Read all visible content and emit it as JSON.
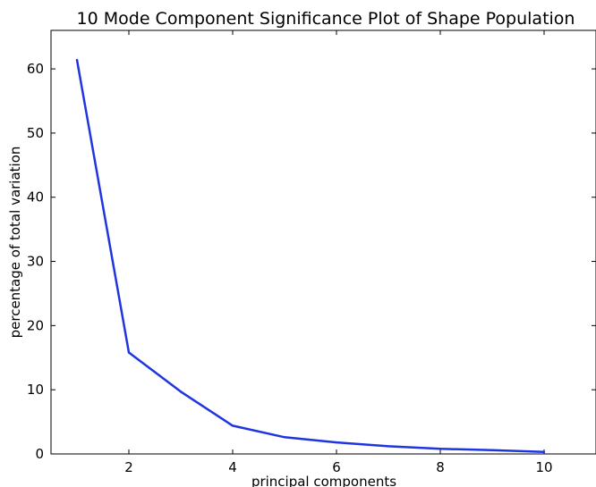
{
  "chart_data": {
    "type": "line",
    "title": "10 Mode Component Significance Plot of Shape Population",
    "xlabel": "principal components",
    "ylabel": "percentage of total variation",
    "xlim": [
      0.5,
      11
    ],
    "ylim": [
      0,
      66
    ],
    "x_ticks": [
      2,
      4,
      6,
      8,
      10
    ],
    "y_ticks": [
      0,
      10,
      20,
      30,
      40,
      50,
      60
    ],
    "grid": false,
    "series": [
      {
        "color": "#1f35e0",
        "x": [
          1,
          2,
          3,
          4,
          5,
          6,
          7,
          8,
          9,
          10
        ],
        "y": [
          61.4,
          15.8,
          9.7,
          4.4,
          2.6,
          1.8,
          1.2,
          0.8,
          0.6,
          0.3
        ]
      }
    ]
  }
}
